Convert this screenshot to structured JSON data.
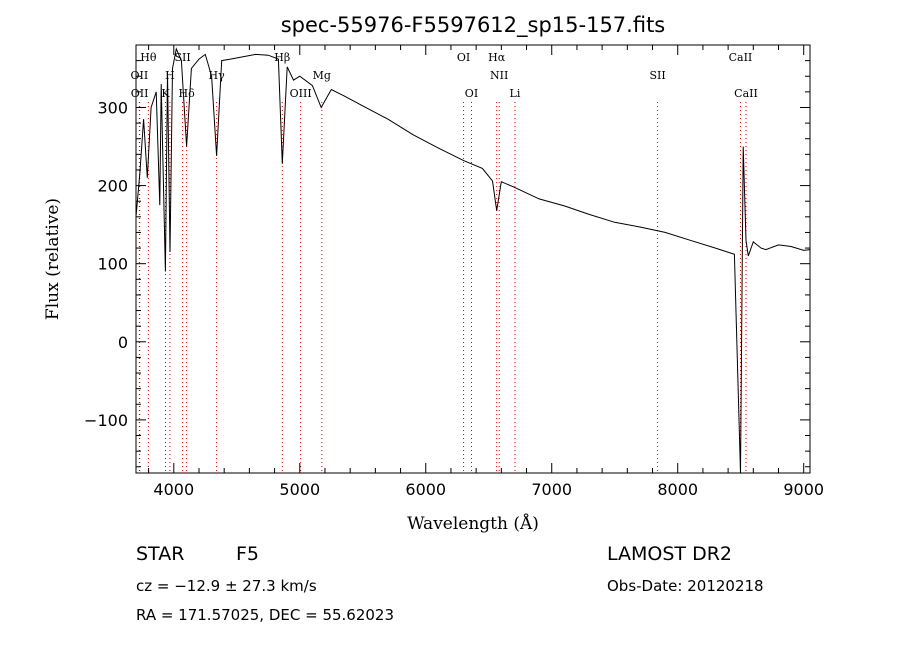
{
  "chart_data": {
    "type": "line",
    "title": "spec-55976-F5597612_sp15-157.fits",
    "xlabel": "Wavelength (Å)",
    "ylabel": "Flux (relative)",
    "xlim": [
      3700,
      9050
    ],
    "ylim": [
      -168,
      380
    ],
    "xticks": [
      4000,
      5000,
      6000,
      7000,
      8000,
      9000
    ],
    "yticks": [
      -100,
      0,
      100,
      200,
      300
    ],
    "ytick_labels": [
      "−100",
      "0",
      "100",
      "200",
      "300"
    ],
    "grid": false,
    "series": [
      {
        "x": [
          3700,
          3730,
          3760,
          3790,
          3820,
          3860,
          3889,
          3900,
          3933,
          3950,
          3970,
          3990,
          4020,
          4060,
          4102,
          4140,
          4200,
          4250,
          4300,
          4340,
          4380,
          4450,
          4550,
          4650,
          4750,
          4830,
          4861,
          4900,
          4950,
          5000,
          5100,
          5170,
          5250,
          5350,
          5500,
          5700,
          5900,
          6100,
          6300,
          6450,
          6530,
          6563,
          6600,
          6700,
          6900,
          7100,
          7300,
          7500,
          7700,
          7900,
          8100,
          8300,
          8450,
          8498,
          8520,
          8542,
          8560,
          8600,
          8662,
          8700,
          8800,
          8900,
          9000,
          9050
        ],
        "y": [
          160,
          215,
          285,
          210,
          300,
          320,
          175,
          330,
          90,
          345,
          115,
          350,
          375,
          360,
          250,
          350,
          362,
          368,
          340,
          238,
          360,
          362,
          365,
          368,
          367,
          362,
          228,
          352,
          335,
          340,
          328,
          300,
          323,
          315,
          302,
          285,
          265,
          248,
          232,
          222,
          206,
          168,
          205,
          198,
          183,
          174,
          163,
          153,
          147,
          140,
          130,
          120,
          112,
          -168,
          250,
          130,
          110,
          128,
          120,
          118,
          124,
          122,
          117,
          118
        ]
      }
    ],
    "spectral_lines": [
      {
        "label": "Hθ",
        "wavelength": 3798,
        "row": 0
      },
      {
        "label": "OII",
        "wavelength": 3727,
        "row": 1
      },
      {
        "label": "OII",
        "wavelength": 3729,
        "row": 2
      },
      {
        "label": "H",
        "wavelength": 3969,
        "row": 1
      },
      {
        "label": "K",
        "wavelength": 3934,
        "row": 2
      },
      {
        "label": "SII",
        "wavelength": 4070,
        "row": 0
      },
      {
        "label": "Hδ",
        "wavelength": 4102,
        "row": 2
      },
      {
        "label": "Hγ",
        "wavelength": 4340,
        "row": 1
      },
      {
        "label": "Hβ",
        "wavelength": 4861,
        "row": 0
      },
      {
        "label": "OIII",
        "wavelength": 5007,
        "row": 2
      },
      {
        "label": "Mg",
        "wavelength": 5175,
        "row": 1
      },
      {
        "label": "OI",
        "wavelength": 6300,
        "row": 0
      },
      {
        "label": "OI",
        "wavelength": 6363,
        "row": 2
      },
      {
        "label": "Hα",
        "wavelength": 6563,
        "row": 0
      },
      {
        "label": "NII",
        "wavelength": 6583,
        "row": 1
      },
      {
        "label": "Li",
        "wavelength": 6708,
        "row": 2
      },
      {
        "label": "SII",
        "wavelength": 7840,
        "row": 1
      },
      {
        "label": "CaII",
        "wavelength": 8498,
        "row": 0
      },
      {
        "label": "CaII",
        "wavelength": 8542,
        "row": 2
      }
    ],
    "annotations": {
      "class_label": "STAR",
      "subclass": "F5",
      "survey": "LAMOST DR2",
      "redshift": "cz = −12.9 ± 27.3 km/s",
      "obs_date": "Obs-Date: 20120218",
      "coords": "RA = 171.57025, DEC =  55.62023"
    }
  },
  "colors": {
    "spectrum": "#000000",
    "line_markers": "#cc0000",
    "axes": "#000000"
  }
}
